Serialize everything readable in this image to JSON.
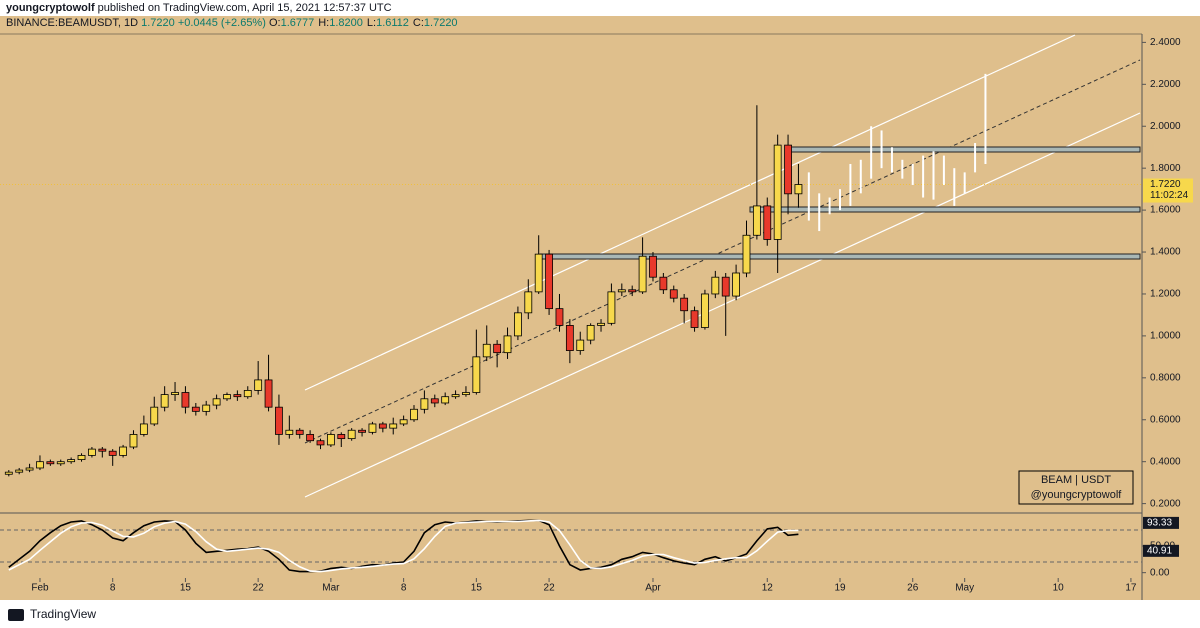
{
  "header": {
    "author": "youngcryptowolf",
    "published": "published on TradingView.com, April 15, 2021 12:57:37 UTC",
    "symbol": "BINANCE:BEAMUSDT, 1D",
    "price": "1.7220",
    "change": "+0.0445 (+2.65%)",
    "ohlc": [
      {
        "k": "O:",
        "v": "1.6777"
      },
      {
        "k": "H:",
        "v": "1.8200"
      },
      {
        "k": "L:",
        "v": "1.6112"
      },
      {
        "k": "C:",
        "v": "1.7220"
      }
    ]
  },
  "legend_box": [
    "BEAM  | USDT",
    "@youngcryptowolf"
  ],
  "footer": "TradingView",
  "chart_data": {
    "type": "candlestick",
    "up_color": "#f7d84c",
    "down_color": "#e8392b",
    "x": [
      "2021-01-29",
      "2021-01-30",
      "2021-01-31",
      "2021-02-01",
      "2021-02-02",
      "2021-02-03",
      "2021-02-04",
      "2021-02-05",
      "2021-02-06",
      "2021-02-07",
      "2021-02-08",
      "2021-02-09",
      "2021-02-10",
      "2021-02-11",
      "2021-02-12",
      "2021-02-13",
      "2021-02-14",
      "2021-02-15",
      "2021-02-16",
      "2021-02-17",
      "2021-02-18",
      "2021-02-19",
      "2021-02-20",
      "2021-02-21",
      "2021-02-22",
      "2021-02-23",
      "2021-02-24",
      "2021-02-25",
      "2021-02-26",
      "2021-02-27",
      "2021-02-28",
      "2021-03-01",
      "2021-03-02",
      "2021-03-03",
      "2021-03-04",
      "2021-03-05",
      "2021-03-06",
      "2021-03-07",
      "2021-03-08",
      "2021-03-09",
      "2021-03-10",
      "2021-03-11",
      "2021-03-12",
      "2021-03-13",
      "2021-03-14",
      "2021-03-15",
      "2021-03-16",
      "2021-03-17",
      "2021-03-18",
      "2021-03-19",
      "2021-03-20",
      "2021-03-21",
      "2021-03-22",
      "2021-03-23",
      "2021-03-24",
      "2021-03-25",
      "2021-03-26",
      "2021-03-27",
      "2021-03-28",
      "2021-03-29",
      "2021-03-30",
      "2021-03-31",
      "2021-04-01",
      "2021-04-02",
      "2021-04-03",
      "2021-04-04",
      "2021-04-05",
      "2021-04-06",
      "2021-04-07",
      "2021-04-08",
      "2021-04-09",
      "2021-04-10",
      "2021-04-11",
      "2021-04-12",
      "2021-04-13",
      "2021-04-14",
      "2021-04-15"
    ],
    "open": [
      0.34,
      0.35,
      0.36,
      0.37,
      0.4,
      0.39,
      0.4,
      0.41,
      0.43,
      0.46,
      0.45,
      0.43,
      0.47,
      0.53,
      0.58,
      0.66,
      0.72,
      0.73,
      0.66,
      0.64,
      0.67,
      0.7,
      0.72,
      0.71,
      0.74,
      0.79,
      0.66,
      0.53,
      0.55,
      0.53,
      0.5,
      0.48,
      0.53,
      0.51,
      0.55,
      0.54,
      0.58,
      0.56,
      0.58,
      0.6,
      0.65,
      0.7,
      0.68,
      0.71,
      0.72,
      0.73,
      0.9,
      0.96,
      0.92,
      1.0,
      1.11,
      1.21,
      1.39,
      1.13,
      1.05,
      0.93,
      0.98,
      1.05,
      1.06,
      1.21,
      1.22,
      1.21,
      1.38,
      1.28,
      1.22,
      1.18,
      1.12,
      1.04,
      1.2,
      1.28,
      1.19,
      1.3,
      1.48,
      1.62,
      1.46,
      1.91,
      1.6777
    ],
    "high": [
      0.36,
      0.37,
      0.39,
      0.43,
      0.41,
      0.41,
      0.42,
      0.44,
      0.47,
      0.47,
      0.46,
      0.48,
      0.55,
      0.62,
      0.71,
      0.76,
      0.78,
      0.76,
      0.68,
      0.69,
      0.72,
      0.73,
      0.74,
      0.76,
      0.88,
      0.91,
      0.72,
      0.62,
      0.56,
      0.55,
      0.51,
      0.54,
      0.54,
      0.56,
      0.56,
      0.59,
      0.59,
      0.61,
      0.62,
      0.67,
      0.74,
      0.72,
      0.73,
      0.74,
      0.76,
      1.03,
      1.05,
      0.98,
      1.04,
      1.14,
      1.27,
      1.48,
      1.41,
      1.2,
      1.08,
      1.02,
      1.06,
      1.08,
      1.25,
      1.25,
      1.24,
      1.47,
      1.4,
      1.3,
      1.24,
      1.2,
      1.14,
      1.22,
      1.31,
      1.3,
      1.34,
      1.55,
      2.1,
      1.66,
      1.96,
      1.96,
      1.82
    ],
    "low": [
      0.33,
      0.34,
      0.35,
      0.36,
      0.38,
      0.38,
      0.39,
      0.4,
      0.42,
      0.42,
      0.38,
      0.42,
      0.46,
      0.52,
      0.57,
      0.64,
      0.69,
      0.63,
      0.62,
      0.62,
      0.65,
      0.69,
      0.69,
      0.7,
      0.72,
      0.64,
      0.48,
      0.51,
      0.51,
      0.49,
      0.46,
      0.47,
      0.47,
      0.5,
      0.52,
      0.53,
      0.54,
      0.53,
      0.57,
      0.59,
      0.63,
      0.66,
      0.67,
      0.7,
      0.71,
      0.72,
      0.88,
      0.85,
      0.89,
      0.98,
      1.08,
      1.2,
      1.1,
      1.02,
      0.87,
      0.91,
      0.96,
      1.02,
      1.05,
      1.19,
      1.19,
      1.2,
      1.26,
      1.2,
      1.16,
      1.06,
      1.02,
      1.03,
      1.18,
      1.0,
      1.17,
      1.28,
      1.46,
      1.43,
      1.3,
      1.58,
      1.6112
    ],
    "close": [
      0.35,
      0.36,
      0.37,
      0.4,
      0.39,
      0.4,
      0.41,
      0.43,
      0.46,
      0.45,
      0.43,
      0.47,
      0.53,
      0.58,
      0.66,
      0.72,
      0.73,
      0.66,
      0.64,
      0.67,
      0.7,
      0.72,
      0.71,
      0.74,
      0.79,
      0.66,
      0.53,
      0.55,
      0.53,
      0.5,
      0.48,
      0.53,
      0.51,
      0.55,
      0.54,
      0.58,
      0.56,
      0.58,
      0.6,
      0.65,
      0.7,
      0.68,
      0.71,
      0.72,
      0.73,
      0.9,
      0.96,
      0.92,
      1.0,
      1.11,
      1.21,
      1.39,
      1.13,
      1.05,
      0.93,
      0.98,
      1.05,
      1.06,
      1.21,
      1.22,
      1.21,
      1.38,
      1.28,
      1.22,
      1.18,
      1.12,
      1.04,
      1.2,
      1.28,
      1.19,
      1.3,
      1.48,
      1.62,
      1.46,
      1.91,
      1.6777,
      1.722
    ],
    "last_price": {
      "value": 1.722,
      "label": "1.7220"
    },
    "countdown": "11:02:24",
    "ylim": [
      0.16,
      2.44
    ],
    "yticks": [
      {
        "value": 0.2,
        "label": "0.2000"
      },
      {
        "value": 0.4,
        "label": "0.4000"
      },
      {
        "value": 0.6,
        "label": "0.6000"
      },
      {
        "value": 0.8,
        "label": "0.8000"
      },
      {
        "value": 1.0,
        "label": "1.0000"
      },
      {
        "value": 1.2,
        "label": "1.2000"
      },
      {
        "value": 1.4,
        "label": "1.4000"
      },
      {
        "value": 1.6,
        "label": "1.6000"
      },
      {
        "value": 1.8,
        "label": "1.8000"
      },
      {
        "value": 2.0,
        "label": "2.0000"
      },
      {
        "value": 2.2,
        "label": "2.2000"
      },
      {
        "value": 2.4,
        "label": "2.4000"
      }
    ],
    "xticks": [
      {
        "value": "2021-02-01",
        "label": "Feb"
      },
      {
        "value": "2021-02-08",
        "label": "8"
      },
      {
        "value": "2021-02-15",
        "label": "15"
      },
      {
        "value": "2021-02-22",
        "label": "22"
      },
      {
        "value": "2021-03-01",
        "label": "Mar"
      },
      {
        "value": "2021-03-08",
        "label": "8"
      },
      {
        "value": "2021-03-15",
        "label": "15"
      },
      {
        "value": "2021-03-22",
        "label": "22"
      },
      {
        "value": "2021-04-01",
        "label": "Apr"
      },
      {
        "value": "2021-04-12",
        "label": "12"
      },
      {
        "value": "2021-04-19",
        "label": "19"
      },
      {
        "value": "2021-04-26",
        "label": "26"
      },
      {
        "value": "2021-05-01",
        "label": "May"
      },
      {
        "value": "2021-05-10",
        "label": "10"
      },
      {
        "value": "2021-05-17",
        "label": "17"
      }
    ],
    "projection": {
      "color": "#ffffff",
      "x": [
        "2021-04-16",
        "2021-04-17",
        "2021-04-18",
        "2021-04-19",
        "2021-04-20",
        "2021-04-21",
        "2021-04-22",
        "2021-04-23",
        "2021-04-24",
        "2021-04-25",
        "2021-04-26",
        "2021-04-27",
        "2021-04-28",
        "2021-04-29",
        "2021-04-30",
        "2021-05-01",
        "2021-05-02",
        "2021-05-03"
      ],
      "low": [
        1.55,
        1.5,
        1.58,
        1.6,
        1.62,
        1.68,
        1.75,
        1.8,
        1.78,
        1.75,
        1.72,
        1.66,
        1.65,
        1.72,
        1.62,
        1.68,
        1.78,
        1.82
      ],
      "high": [
        1.78,
        1.68,
        1.66,
        1.7,
        1.82,
        1.84,
        2.0,
        1.98,
        1.9,
        1.84,
        1.82,
        1.86,
        1.88,
        1.86,
        1.8,
        1.78,
        1.92,
        2.25
      ]
    },
    "oscillator": {
      "ylim": [
        -10,
        110
      ],
      "yticks": [
        {
          "value": 0,
          "label": "0.00"
        },
        {
          "value": 50,
          "label": "50.00"
        }
      ],
      "levels": [
        80,
        20
      ],
      "tags": [
        93.33,
        40.91
      ],
      "series": [
        {
          "color": "#000000",
          "values": [
            10,
            25,
            40,
            60,
            75,
            88,
            95,
            97,
            90,
            80,
            65,
            60,
            75,
            88,
            95,
            97,
            96,
            80,
            55,
            38,
            40,
            42,
            44,
            45,
            48,
            40,
            25,
            5,
            2,
            2,
            3,
            8,
            10,
            8,
            12,
            15,
            14,
            18,
            20,
            40,
            75,
            90,
            95,
            93,
            95,
            97,
            96,
            95,
            96,
            97,
            98,
            98,
            90,
            50,
            15,
            5,
            8,
            10,
            15,
            25,
            30,
            38,
            35,
            28,
            22,
            18,
            15,
            25,
            30,
            22,
            28,
            35,
            60,
            82,
            85,
            70,
            72
          ]
        },
        {
          "color": "#ffffff",
          "values": [
            5,
            15,
            25,
            42,
            58,
            74,
            86,
            93,
            94,
            89,
            78,
            68,
            67,
            74,
            86,
            93,
            96,
            91,
            77,
            58,
            44,
            40,
            42,
            44,
            46,
            44,
            38,
            23,
            11,
            3,
            2,
            4,
            7,
            9,
            10,
            12,
            14,
            16,
            17,
            26,
            45,
            68,
            87,
            93,
            94,
            95,
            96,
            96,
            96,
            96,
            97,
            98,
            95,
            79,
            52,
            23,
            9,
            8,
            11,
            17,
            23,
            31,
            34,
            34,
            28,
            23,
            18,
            19,
            23,
            26,
            28,
            28,
            41,
            59,
            76,
            79,
            79
          ]
        }
      ]
    }
  }
}
